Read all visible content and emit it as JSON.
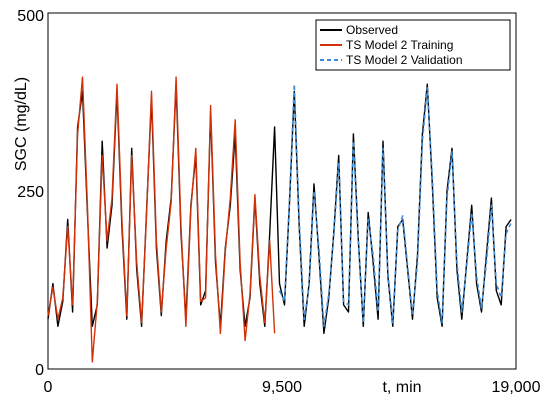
{
  "chart_data": {
    "type": "line",
    "title": "",
    "xlabel": "t, min",
    "ylabel": "SGC (mg/dL)",
    "xlim": [
      0,
      19000
    ],
    "ylim": [
      0,
      500
    ],
    "x_ticks": [
      {
        "value": 0,
        "label": "0"
      },
      {
        "value": 9500,
        "label": "9,500"
      },
      {
        "value": 19000,
        "label": "19,000"
      }
    ],
    "y_ticks": [
      {
        "value": 0,
        "label": "0"
      },
      {
        "value": 250,
        "label": "250"
      },
      {
        "value": 500,
        "label": "500"
      }
    ],
    "grid": false,
    "legend_position": "top-right",
    "series": [
      {
        "name": "Observed",
        "color": "#000000",
        "dash": "solid",
        "x": [
          0,
          200,
          400,
          600,
          800,
          1000,
          1200,
          1400,
          1600,
          1800,
          2000,
          2200,
          2400,
          2600,
          2800,
          3000,
          3200,
          3400,
          3600,
          3800,
          4000,
          4200,
          4400,
          4600,
          4800,
          5000,
          5200,
          5400,
          5600,
          5800,
          6000,
          6200,
          6400,
          6600,
          6800,
          7000,
          7200,
          7400,
          7600,
          7800,
          8000,
          8200,
          8400,
          8600,
          8800,
          9000,
          9200,
          9400,
          9600,
          9800,
          10000,
          10200,
          10400,
          10600,
          10800,
          11000,
          11200,
          11400,
          11600,
          11800,
          12000,
          12200,
          12400,
          12600,
          12800,
          13000,
          13200,
          13400,
          13600,
          13800,
          14000,
          14200,
          14400,
          14600,
          14800,
          15000,
          15200,
          15400,
          15600,
          15800,
          16000,
          16200,
          16400,
          16600,
          16800,
          17000,
          17200,
          17400,
          17600,
          17800,
          18000,
          18200,
          18400,
          18600,
          18800
        ],
        "values": [
          70,
          120,
          60,
          95,
          210,
          80,
          340,
          390,
          220,
          60,
          90,
          320,
          170,
          230,
          390,
          200,
          70,
          310,
          140,
          60,
          220,
          380,
          170,
          75,
          180,
          240,
          400,
          190,
          70,
          230,
          300,
          90,
          110,
          360,
          150,
          60,
          170,
          230,
          330,
          140,
          60,
          100,
          240,
          120,
          60,
          190,
          340,
          120,
          90,
          230,
          390,
          200,
          60,
          120,
          260,
          160,
          50,
          100,
          190,
          300,
          90,
          80,
          330,
          180,
          60,
          220,
          150,
          70,
          320,
          130,
          60,
          200,
          210,
          140,
          70,
          160,
          330,
          400,
          260,
          100,
          60,
          250,
          310,
          140,
          70,
          150,
          230,
          120,
          80,
          160,
          240,
          110,
          90,
          200,
          210
        ]
      },
      {
        "name": "TS Model 2 Training",
        "color": "#d0320a",
        "dash": "solid",
        "x": [
          0,
          200,
          400,
          600,
          800,
          1000,
          1200,
          1400,
          1600,
          1800,
          2000,
          2200,
          2400,
          2600,
          2800,
          3000,
          3200,
          3400,
          3600,
          3800,
          4000,
          4200,
          4400,
          4600,
          4800,
          5000,
          5200,
          5400,
          5600,
          5800,
          6000,
          6200,
          6400,
          6600,
          6800,
          7000,
          7200,
          7400,
          7600,
          7800,
          8000,
          8200,
          8400,
          8600,
          8800,
          9000,
          9200
        ],
        "values": [
          75,
          115,
          70,
          100,
          200,
          90,
          330,
          410,
          230,
          10,
          95,
          300,
          180,
          240,
          400,
          210,
          75,
          300,
          150,
          65,
          215,
          390,
          180,
          80,
          170,
          235,
          410,
          200,
          60,
          225,
          310,
          95,
          100,
          370,
          160,
          50,
          165,
          240,
          350,
          150,
          40,
          105,
          245,
          130,
          65,
          180,
          50
        ]
      },
      {
        "name": "TS Model 2 Validation",
        "color": "#3c8cdc",
        "dash": "dashed",
        "x": [
          9400,
          9600,
          9800,
          10000,
          10200,
          10400,
          10600,
          10800,
          11000,
          11200,
          11400,
          11600,
          11800,
          12000,
          12200,
          12400,
          12600,
          12800,
          13000,
          13200,
          13400,
          13600,
          13800,
          14000,
          14200,
          14400,
          14600,
          14800,
          15000,
          15200,
          15400,
          15600,
          15800,
          16000,
          16200,
          16400,
          16600,
          16800,
          17000,
          17200,
          17400,
          17600,
          17800,
          18000,
          18200,
          18400,
          18600,
          18800
        ],
        "values": [
          110,
          95,
          235,
          400,
          210,
          70,
          115,
          250,
          170,
          60,
          105,
          185,
          290,
          95,
          90,
          320,
          175,
          65,
          210,
          160,
          80,
          310,
          135,
          65,
          195,
          215,
          145,
          75,
          150,
          320,
          395,
          270,
          110,
          65,
          240,
          305,
          150,
          80,
          145,
          220,
          130,
          85,
          150,
          230,
          120,
          100,
          190,
          205
        ]
      }
    ]
  }
}
